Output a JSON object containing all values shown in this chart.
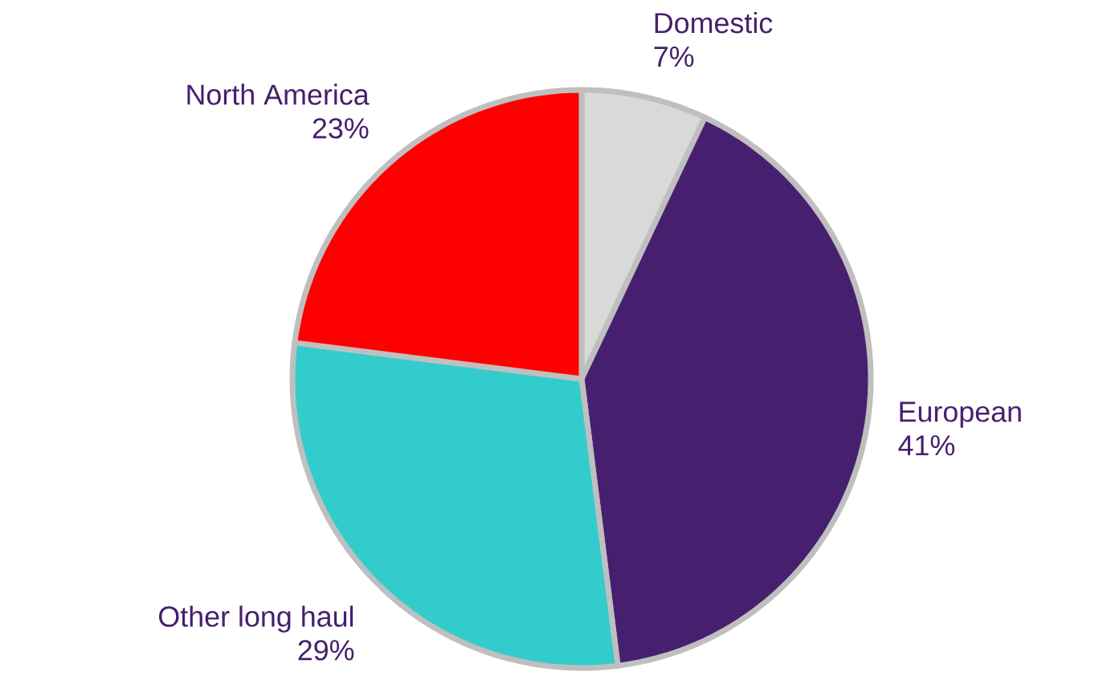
{
  "chart_data": {
    "type": "pie",
    "categories": [
      "Domestic",
      "European",
      "Other long haul",
      "North America"
    ],
    "values": [
      7,
      41,
      29,
      23
    ],
    "value_labels": [
      "7%",
      "41%",
      "29%",
      "23%"
    ],
    "colors": [
      "#d9d9d9",
      "#46206e",
      "#33cccc",
      "#ff0000"
    ]
  }
}
